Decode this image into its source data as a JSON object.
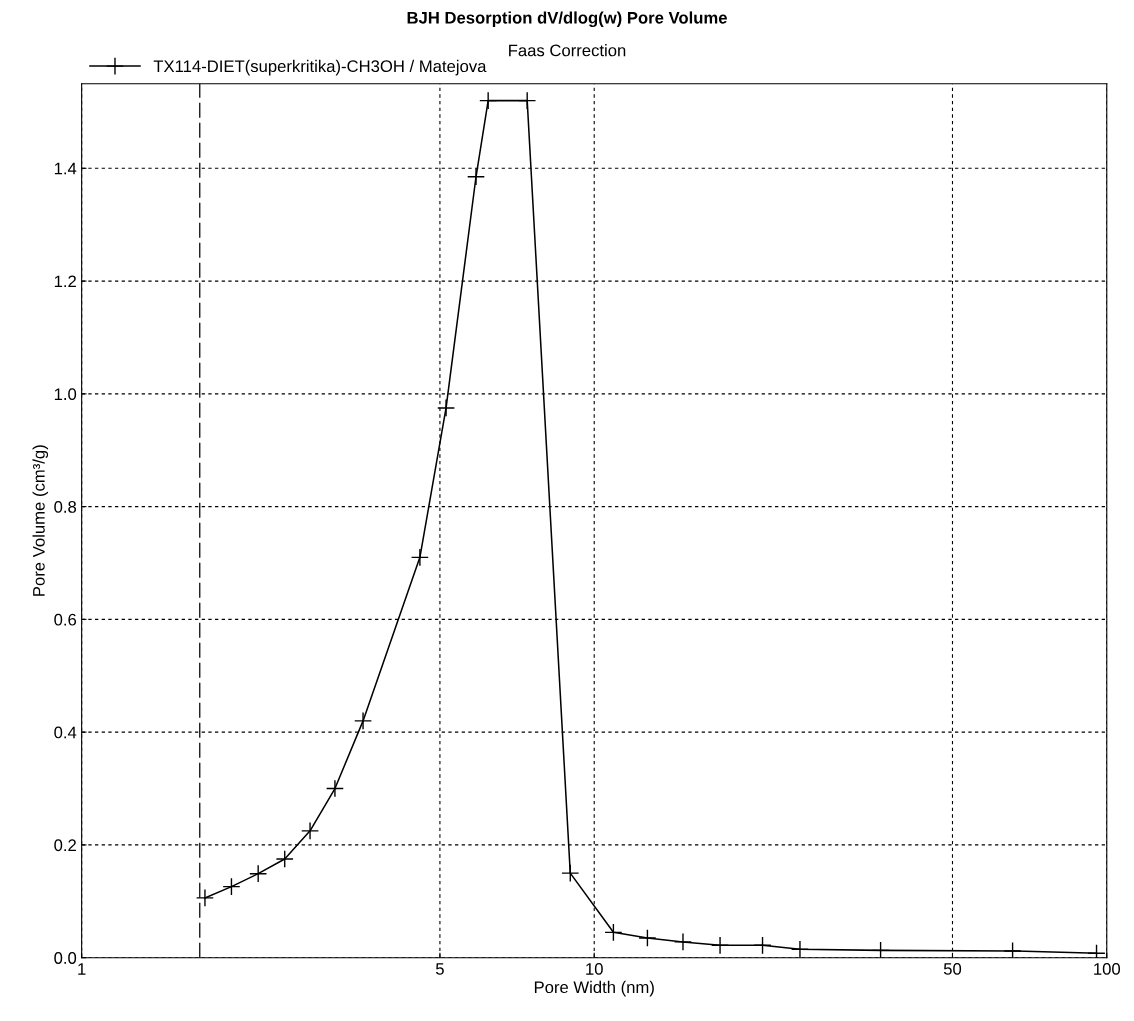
{
  "chart_data": {
    "type": "line",
    "title": "BJH Desorption dV/dlog(w) Pore Volume",
    "subtitle": "Faas Correction",
    "xlabel": "Pore Width (nm)",
    "ylabel": "Pore Volume (cm³/g)",
    "log": "x",
    "xlim": [
      1,
      100
    ],
    "xticks": [
      1,
      5,
      10,
      50,
      100
    ],
    "ylim": [
      0,
      1.55
    ],
    "yticks": [
      {
        "value": 0,
        "label": "0.0"
      },
      {
        "value": 0.2,
        "label": "0.2"
      },
      {
        "value": 0.4,
        "label": "0.4"
      },
      {
        "value": 0.6,
        "label": "0.6"
      },
      {
        "value": 0.8,
        "label": "0.8"
      },
      {
        "value": 1.0,
        "label": "1.0"
      },
      {
        "value": 1.2,
        "label": "1.2"
      },
      {
        "value": 1.4,
        "label": "1.4"
      }
    ],
    "grid": true,
    "legend": "top left",
    "marker": "cross",
    "line_style": "solid",
    "ref_lines": [
      {
        "axis": "x",
        "value": 1.7,
        "color": "#000000",
        "line_style": "dashed"
      }
    ],
    "series": [
      {
        "name": "TX114-DIET(superkritika)-CH3OH / Matejova",
        "color": "#000000",
        "x": [
          1.74,
          1.96,
          2.21,
          2.49,
          2.79,
          3.12,
          3.54,
          4.57,
          5.14,
          5.88,
          6.21,
          7.4,
          8.98,
          10.9,
          12.7,
          14.9,
          17.6,
          21.3,
          25.2,
          36.2,
          65.5,
          95.5
        ],
        "values": [
          0.106,
          0.126,
          0.149,
          0.175,
          0.225,
          0.3,
          0.42,
          0.71,
          0.975,
          1.385,
          1.52,
          1.52,
          0.15,
          0.045,
          0.035,
          0.028,
          0.022,
          0.022,
          0.015,
          0.013,
          0.012,
          0.008
        ]
      }
    ]
  }
}
